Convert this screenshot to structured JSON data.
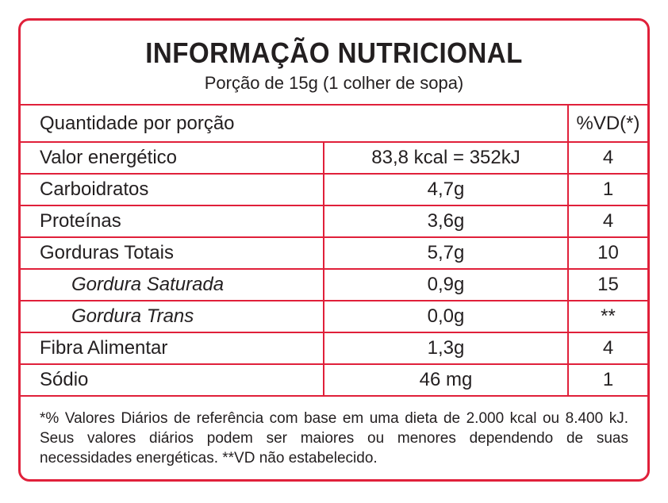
{
  "title": "INFORMAÇÃO NUTRICIONAL",
  "serving": "Porção de 15g (1 colher de sopa)",
  "table": {
    "header_label": "Quantidade por porção",
    "header_vd": "%VD(*)",
    "rows": [
      {
        "name": "Valor energético",
        "amount": "83,8 kcal = 352kJ",
        "vd": "4"
      },
      {
        "name": "Carboidratos",
        "amount": "4,7g",
        "vd": "1"
      },
      {
        "name": "Proteínas",
        "amount": "3,6g",
        "vd": "4"
      },
      {
        "name": "Gorduras Totais",
        "amount": "5,7g",
        "vd": "10"
      },
      {
        "name": "Gordura Saturada",
        "amount": "0,9g",
        "vd": "15"
      },
      {
        "name": "Gordura Trans",
        "amount": "0,0g",
        "vd": "**"
      },
      {
        "name": "Fibra Alimentar",
        "amount": "1,3g",
        "vd": "4"
      },
      {
        "name": "Sódio",
        "amount": "46 mg",
        "vd": "1"
      }
    ]
  },
  "footnote": "*% Valores Diários de referência com base em uma dieta de 2.000 kcal ou 8.400 kJ. Seus valores diários podem ser maiores ou menores dependendo de suas necessidades energéticas. **VD não estabelecido.",
  "colors": {
    "border": "#e0203a",
    "text": "#231f20"
  }
}
